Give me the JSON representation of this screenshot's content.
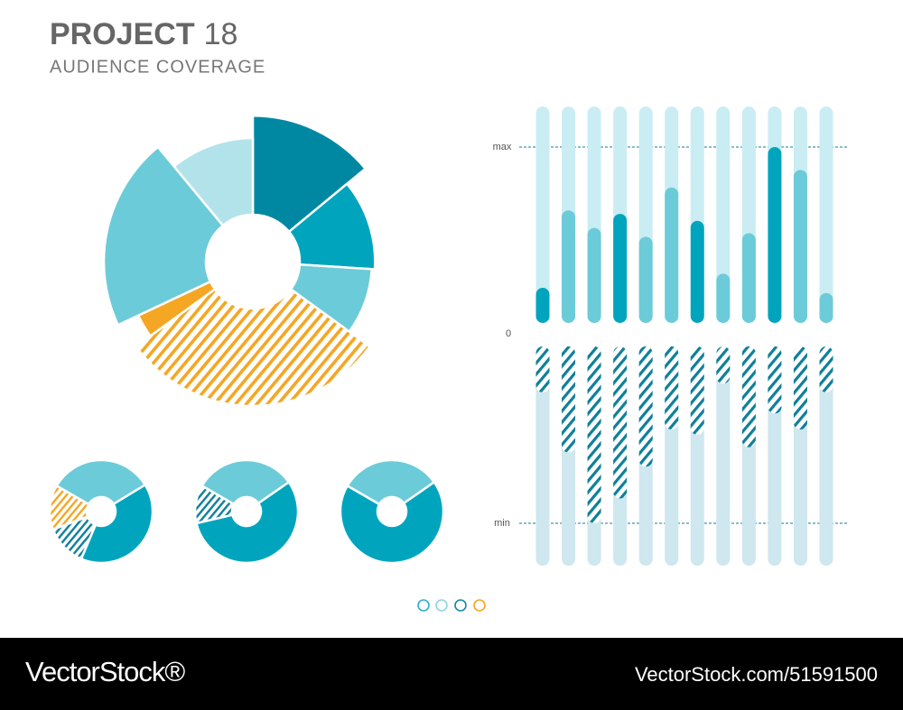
{
  "header": {
    "title": "PROJECT",
    "number": "18",
    "subtitle": "AUDIENCE COVERAGE"
  },
  "footer": {
    "brand": "VectorStock®",
    "url": "VectorStock.com/51591500"
  },
  "chart_data": [
    {
      "type": "pie",
      "values": [
        14,
        12,
        9,
        30,
        3,
        21,
        11
      ],
      "radii": [
        98,
        82,
        80,
        97,
        85,
        100,
        83
      ],
      "colors": [
        "#0088a3",
        "#00a5bd",
        "#6ccbd8",
        "#f5a623",
        "#f5a623",
        "#6ccbd8",
        "#b3e3ea"
      ],
      "hatched": [
        false,
        false,
        false,
        true,
        false,
        false,
        false
      ]
    },
    {
      "type": "pie",
      "values": [
        33,
        40,
        13,
        14
      ],
      "colors": [
        "#6ccbd8",
        "#00a5bd",
        "#0e7f9a",
        "#f5a623"
      ],
      "hatched": [
        false,
        false,
        true,
        true
      ]
    },
    {
      "type": "pie",
      "values": [
        32,
        56,
        12
      ],
      "colors": [
        "#6ccbd8",
        "#00a5bd",
        "#0e7f9a"
      ],
      "hatched": [
        false,
        false,
        true
      ]
    },
    {
      "type": "pie",
      "values": [
        32,
        68
      ],
      "colors": [
        "#6ccbd8",
        "#00a5bd"
      ],
      "hatched": [
        false,
        false
      ]
    },
    {
      "type": "bar",
      "categories": [
        null,
        null,
        null,
        null,
        null,
        null,
        null,
        null,
        null,
        null,
        null,
        null
      ],
      "series": [
        {
          "values": [
            20,
            64,
            54,
            62,
            49,
            77,
            58,
            28,
            51,
            100,
            87,
            17
          ],
          "colors": [
            "#00a5bd",
            "#6ccbd8",
            "#6ccbd8",
            "#00a5bd",
            "#6ccbd8",
            "#6ccbd8",
            "#00a5bd",
            "#6ccbd8",
            "#6ccbd8",
            "#00a5bd",
            "#6ccbd8",
            "#6ccbd8"
          ]
        },
        {
          "values": [
            -26,
            -60,
            -100,
            -86,
            -68,
            -47,
            -50,
            -21,
            -57,
            -38,
            -47,
            -26
          ],
          "color": "#0e7f9a",
          "hatched": true
        }
      ],
      "ylim": [
        -124,
        123
      ],
      "yticks": [
        {
          "value": 100,
          "label": "max"
        },
        0,
        {
          "value": -100,
          "label": "min"
        }
      ]
    }
  ]
}
